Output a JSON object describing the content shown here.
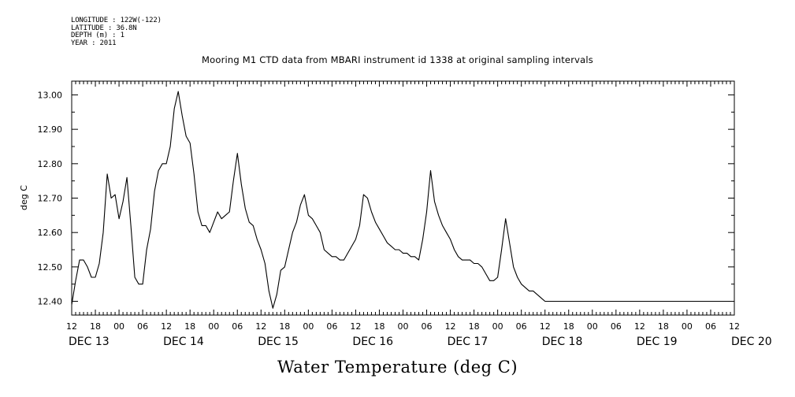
{
  "metadata": {
    "longitude": "LONGITUDE : 122W(-122)",
    "latitude": "LATITUDE : 36.8N",
    "depth": "DEPTH (m) : 1",
    "year": "YEAR : 2011"
  },
  "chart_data": {
    "type": "line",
    "title": "Mooring M1 CTD data from MBARI instrument id 1338 at original sampling intervals",
    "xlabel": "Water Temperature (deg C)",
    "ylabel": "deg C",
    "ylim": [
      12.36,
      13.04
    ],
    "yticks": [
      "12.40",
      "12.50",
      "12.60",
      "12.70",
      "12.80",
      "12.90",
      "13.00"
    ],
    "xlim_hours": [
      0,
      168
    ],
    "hour_ticks": [
      "12",
      "18",
      "00",
      "06",
      "12",
      "18",
      "00",
      "06",
      "12",
      "18",
      "00",
      "06",
      "12",
      "18",
      "00",
      "06",
      "12",
      "18",
      "00",
      "06",
      "12",
      "18",
      "00",
      "06",
      "12",
      "18",
      "00",
      "06",
      "12"
    ],
    "day_labels": [
      "DEC 13",
      "DEC 14",
      "DEC 15",
      "DEC 16",
      "DEC 17",
      "DEC 18",
      "DEC 19",
      "DEC 20"
    ],
    "grid": false,
    "series": [
      {
        "x": [
          0,
          1,
          2,
          3,
          4,
          5,
          6,
          7,
          8,
          9,
          10,
          11,
          12,
          13,
          14,
          15,
          16,
          17,
          18,
          19,
          20,
          21,
          22,
          23,
          24,
          25,
          26,
          27,
          28,
          29,
          30,
          31,
          32,
          33,
          34,
          35,
          36,
          37,
          38,
          39,
          40,
          41,
          42,
          43,
          44,
          45,
          46,
          47,
          48,
          49,
          50,
          51,
          52,
          53,
          54,
          55,
          56,
          57,
          58,
          59,
          60,
          61,
          62,
          63,
          64,
          65,
          66,
          67,
          68,
          69,
          70,
          71,
          72,
          73,
          74,
          75,
          76,
          77,
          78,
          79,
          80,
          81,
          82,
          83,
          84,
          85,
          86,
          87,
          88,
          89,
          90,
          91,
          92,
          93,
          94,
          95,
          96,
          97,
          98,
          99,
          100,
          101,
          102,
          103,
          104,
          105,
          106,
          107,
          108,
          109,
          110,
          111,
          112,
          113,
          114,
          115,
          116,
          117,
          118,
          119,
          120,
          121,
          122,
          123,
          124,
          125,
          126,
          127,
          128,
          129,
          130,
          131,
          132,
          133,
          134,
          135,
          136,
          137,
          138,
          139,
          140,
          141,
          142,
          143,
          144,
          145,
          146,
          147,
          148,
          149,
          150,
          151,
          152,
          153,
          154,
          155,
          156,
          157,
          158,
          159,
          160,
          161,
          162,
          163,
          164,
          165,
          166,
          167,
          168
        ],
        "y": [
          12.39,
          12.46,
          12.52,
          12.52,
          12.5,
          12.47,
          12.47,
          12.51,
          12.6,
          12.77,
          12.7,
          12.71,
          12.64,
          12.69,
          12.76,
          12.62,
          12.47,
          12.45,
          12.45,
          12.55,
          12.61,
          12.72,
          12.78,
          12.8,
          12.8,
          12.85,
          12.96,
          13.01,
          12.94,
          12.88,
          12.86,
          12.77,
          12.66,
          12.62,
          12.62,
          12.6,
          12.63,
          12.66,
          12.64,
          12.65,
          12.66,
          12.75,
          12.83,
          12.74,
          12.67,
          12.63,
          12.62,
          12.58,
          12.55,
          12.51,
          12.43,
          12.38,
          12.42,
          12.49,
          12.5,
          12.55,
          12.6,
          12.63,
          12.68,
          12.71,
          12.65,
          12.64,
          12.62,
          12.6,
          12.55,
          12.54,
          12.53,
          12.53,
          12.52,
          12.52,
          12.54,
          12.56,
          12.58,
          12.62,
          12.71,
          12.7,
          12.66,
          12.63,
          12.61,
          12.59,
          12.57,
          12.56,
          12.55,
          12.55,
          12.54,
          12.54,
          12.53,
          12.53,
          12.52,
          12.58,
          12.66,
          12.78,
          12.69,
          12.65,
          12.62,
          12.6,
          12.58,
          12.55,
          12.53,
          12.52,
          12.52,
          12.52,
          12.51,
          12.51,
          12.5,
          12.48,
          12.46,
          12.46,
          12.47,
          12.55,
          12.64,
          12.57,
          12.5,
          12.47,
          12.45,
          12.44,
          12.43,
          12.43,
          12.42,
          12.41,
          12.4,
          12.4,
          12.4,
          12.4,
          12.4,
          12.4,
          12.4,
          12.4,
          12.4,
          12.4,
          12.4,
          12.4,
          12.4,
          12.4,
          12.4,
          12.4,
          12.4,
          12.4,
          12.4,
          12.4,
          12.4,
          12.4,
          12.4,
          12.4,
          12.4,
          12.4,
          12.4,
          12.4,
          12.4,
          12.4,
          12.4,
          12.4,
          12.4,
          12.4,
          12.4,
          12.4,
          12.4,
          12.4,
          12.4,
          12.4,
          12.4,
          12.4,
          12.4,
          12.4,
          12.4,
          12.4,
          12.4,
          12.4,
          12.4
        ]
      }
    ]
  }
}
